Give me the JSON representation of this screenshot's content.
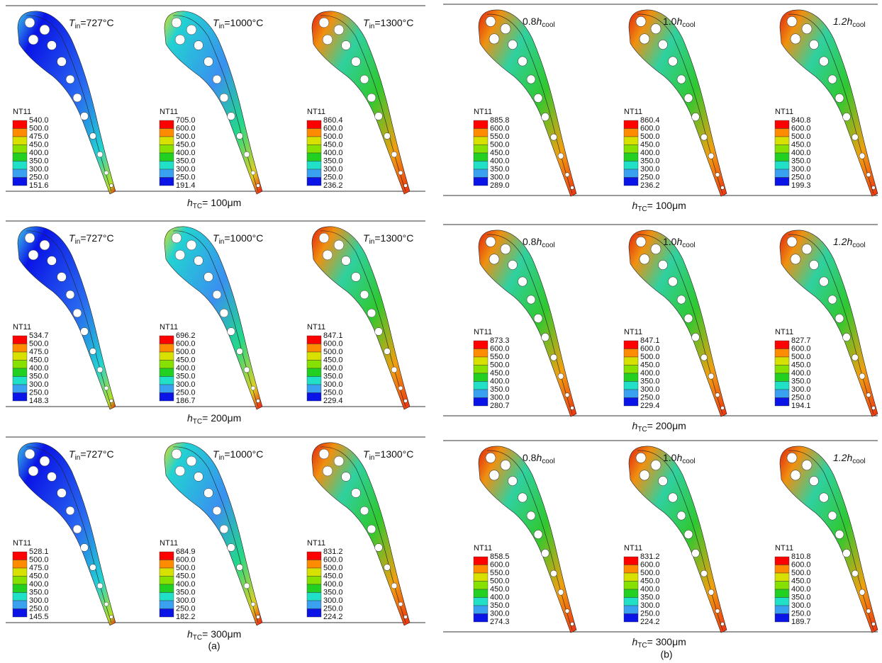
{
  "panels": [
    {
      "label": "(a)",
      "rows": [
        {
          "caption": {
            "symbol": "h",
            "sub": "TC",
            "text": "= 100μm"
          },
          "plots": [
            {
              "title": {
                "symbol": "T",
                "sub": "in",
                "text": "=727°C"
              },
              "legend_title": "NT11",
              "legend": [
                "540.0",
                "500.0",
                "475.0",
                "450.0",
                "400.0",
                "350.0",
                "300.0",
                "250.0",
                "151.6"
              ]
            },
            {
              "title": {
                "symbol": "T",
                "sub": "in",
                "text": "=1000°C"
              },
              "legend_title": "NT11",
              "legend": [
                "705.0",
                "600.0",
                "500.0",
                "450.0",
                "400.0",
                "350.0",
                "300.0",
                "250.0",
                "191.4"
              ]
            },
            {
              "title": {
                "symbol": "T",
                "sub": "in",
                "text": "=1300°C"
              },
              "legend_title": "NT11",
              "legend": [
                "860.4",
                "600.0",
                "500.0",
                "450.0",
                "400.0",
                "350.0",
                "300.0",
                "250.0",
                "236.2"
              ]
            }
          ]
        },
        {
          "caption": {
            "symbol": "h",
            "sub": "TC",
            "text": "= 200μm"
          },
          "plots": [
            {
              "title": {
                "symbol": "T",
                "sub": "in",
                "text": "=727°C"
              },
              "legend_title": "NT11",
              "legend": [
                "534.7",
                "500.0",
                "475.0",
                "450.0",
                "400.0",
                "350.0",
                "300.0",
                "250.0",
                "148.3"
              ]
            },
            {
              "title": {
                "symbol": "T",
                "sub": "in",
                "text": "=1000°C"
              },
              "legend_title": "NT11",
              "legend": [
                "696.2",
                "600.0",
                "500.0",
                "450.0",
                "400.0",
                "350.0",
                "300.0",
                "250.0",
                "186.7"
              ]
            },
            {
              "title": {
                "symbol": "T",
                "sub": "in",
                "text": "=1300°C"
              },
              "legend_title": "NT11",
              "legend": [
                "847.1",
                "600.0",
                "500.0",
                "450.0",
                "400.0",
                "350.0",
                "300.0",
                "250.0",
                "229.4"
              ]
            }
          ]
        },
        {
          "caption": {
            "symbol": "h",
            "sub": "TC",
            "text": "= 300μm"
          },
          "plots": [
            {
              "title": {
                "symbol": "T",
                "sub": "in",
                "text": "=727°C"
              },
              "legend_title": "NT11",
              "legend": [
                "528.1",
                "500.0",
                "475.0",
                "450.0",
                "400.0",
                "350.0",
                "300.0",
                "250.0",
                "145.5"
              ]
            },
            {
              "title": {
                "symbol": "T",
                "sub": "in",
                "text": "=1000°C"
              },
              "legend_title": "NT11",
              "legend": [
                "684.9",
                "600.0",
                "500.0",
                "450.0",
                "400.0",
                "350.0",
                "300.0",
                "250.0",
                "182.2"
              ]
            },
            {
              "title": {
                "symbol": "T",
                "sub": "in",
                "text": "=1300°C"
              },
              "legend_title": "NT11",
              "legend": [
                "831.2",
                "600.0",
                "500.0",
                "450.0",
                "400.0",
                "350.0",
                "300.0",
                "250.0",
                "224.2"
              ]
            }
          ]
        }
      ]
    },
    {
      "label": "(b)",
      "rows": [
        {
          "caption": {
            "symbol": "h",
            "sub": "TC",
            "text": "= 100μm"
          },
          "plots": [
            {
              "title": {
                "prefix": "0.8",
                "symbol": "h",
                "sub": "cool"
              },
              "legend_title": "NT11",
              "legend": [
                "885.8",
                "600.0",
                "550.0",
                "500.0",
                "450.0",
                "400.0",
                "350.0",
                "300.0",
                "289.0"
              ]
            },
            {
              "title": {
                "prefix": "1.0",
                "symbol": "h",
                "sub": "cool"
              },
              "legend_title": "NT11",
              "legend": [
                "860.4",
                "600.0",
                "500.0",
                "450.0",
                "400.0",
                "350.0",
                "300.0",
                "250.0",
                "236.2"
              ]
            },
            {
              "title": {
                "prefix": "1.2",
                "symbol": "h",
                "sub": "cool"
              },
              "legend_title": "NT11",
              "legend": [
                "840.8",
                "600.0",
                "500.0",
                "450.0",
                "400.0",
                "350.0",
                "300.0",
                "250.0",
                "199.3"
              ]
            }
          ]
        },
        {
          "caption": {
            "symbol": "h",
            "sub": "TC",
            "text": "= 200μm"
          },
          "plots": [
            {
              "title": {
                "prefix": "0.8",
                "symbol": "h",
                "sub": "cool"
              },
              "legend_title": "NT11",
              "legend": [
                "873.3",
                "600.0",
                "550.0",
                "500.0",
                "450.0",
                "400.0",
                "350.0",
                "300.0",
                "280.7"
              ]
            },
            {
              "title": {
                "prefix": "1.0",
                "symbol": "h",
                "sub": "cool"
              },
              "legend_title": "NT11",
              "legend": [
                "847.1",
                "600.0",
                "500.0",
                "450.0",
                "400.0",
                "350.0",
                "300.0",
                "250.0",
                "229.4"
              ]
            },
            {
              "title": {
                "prefix": "1.2",
                "symbol": "h",
                "sub": "cool"
              },
              "legend_title": "NT11",
              "legend": [
                "827.7",
                "600.0",
                "500.0",
                "450.0",
                "400.0",
                "350.0",
                "300.0",
                "250.0",
                "194.1"
              ]
            }
          ]
        },
        {
          "caption": {
            "symbol": "h",
            "sub": "TC",
            "text": "= 300μm"
          },
          "plots": [
            {
              "title": {
                "prefix": "0.8",
                "symbol": "h",
                "sub": "cool"
              },
              "legend_title": "NT11",
              "legend": [
                "858.5",
                "600.0",
                "550.0",
                "500.0",
                "450.0",
                "400.0",
                "350.0",
                "300.0",
                "274.3"
              ]
            },
            {
              "title": {
                "prefix": "1.0",
                "symbol": "h",
                "sub": "cool"
              },
              "legend_title": "NT11",
              "legend": [
                "831.2",
                "600.0",
                "500.0",
                "450.0",
                "400.0",
                "350.0",
                "300.0",
                "250.0",
                "224.2"
              ]
            },
            {
              "title": {
                "prefix": "1.2",
                "symbol": "h",
                "sub": "cool"
              },
              "legend_title": "NT11",
              "legend": [
                "810.8",
                "600.0",
                "500.0",
                "450.0",
                "400.0",
                "350.0",
                "300.0",
                "250.0",
                "189.7"
              ]
            }
          ]
        }
      ]
    }
  ]
}
